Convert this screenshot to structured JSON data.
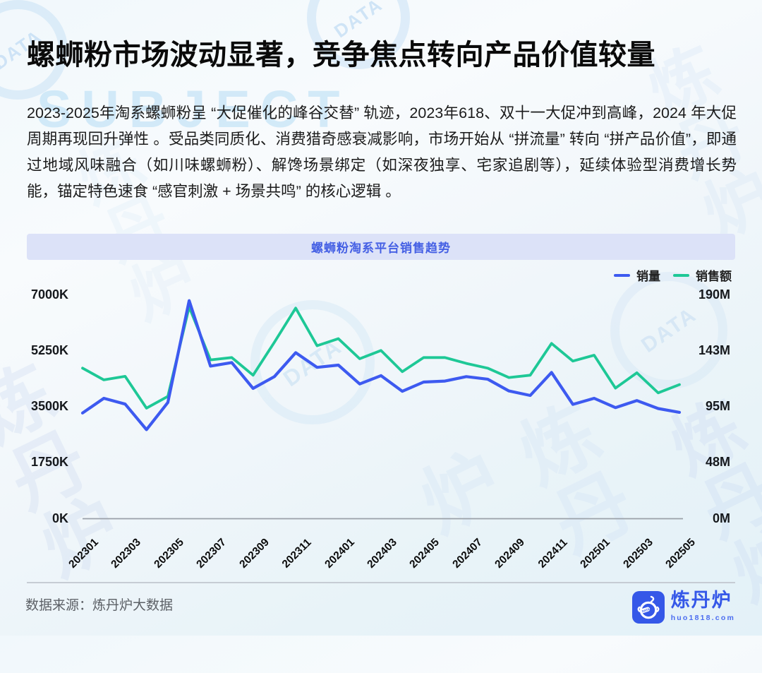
{
  "watermarks": {
    "subject_text": "SUBJECT",
    "badge_text": "DATA",
    "brand_text": "炼丹炉"
  },
  "header": {
    "title": "螺蛳粉市场波动显著，竞争焦点转向产品价值较量"
  },
  "body": {
    "paragraph": "2023-2025年淘系螺蛳粉呈 “大促催化的峰谷交替” 轨迹，2023年618、双十一大促冲到高峰，2024 年大促周期再现回升弹性 。受品类同质化、消费猎奇感衰减影响，市场开始从 “拼流量” 转向 “拼产品价值”，即通过地域风味融合（如川味螺蛳粉）、解馋场景绑定（如深夜独享、宅家追剧等），延续体验型消费增长势能，锚定特色速食 “感官刺激 + 场景共鸣” 的核心逻辑 。"
  },
  "chart_data": {
    "type": "line",
    "title": "螺蛳粉淘系平台销售趋势",
    "x": [
      "202301",
      "202302",
      "202303",
      "202304",
      "202305",
      "202306",
      "202307",
      "202308",
      "202309",
      "202310",
      "202311",
      "202312",
      "202401",
      "202402",
      "202403",
      "202404",
      "202405",
      "202406",
      "202407",
      "202408",
      "202409",
      "202410",
      "202411",
      "202412",
      "202501",
      "202502",
      "202503",
      "202504",
      "202505"
    ],
    "x_tick_labels": [
      "202301",
      "202303",
      "202305",
      "202307",
      "202309",
      "202311",
      "202401",
      "202403",
      "202405",
      "202407",
      "202409",
      "202411",
      "202501",
      "202503",
      "202505"
    ],
    "series": [
      {
        "name": "销量",
        "axis": "left",
        "unit": "K",
        "color": "#3D5AF0",
        "values": [
          3310,
          3770,
          3590,
          2790,
          3640,
          6830,
          4780,
          4890,
          4080,
          4450,
          5200,
          4740,
          4810,
          4220,
          4480,
          3990,
          4280,
          4310,
          4450,
          4370,
          4000,
          3860,
          4580,
          3580,
          3770,
          3480,
          3700,
          3450,
          3330
        ]
      },
      {
        "name": "销售额",
        "axis": "right",
        "unit": "M",
        "color": "#1EC896",
        "values": [
          128,
          118,
          121,
          94,
          104,
          180,
          135,
          137,
          122,
          150,
          179,
          147,
          153,
          136,
          143,
          125,
          137,
          137,
          132,
          128,
          120,
          122,
          149,
          134,
          139,
          111,
          124,
          107,
          114
        ]
      }
    ],
    "left_axis": {
      "ticks": [
        "0K",
        "1750K",
        "3500K",
        "5250K",
        "7000K"
      ],
      "min": 0,
      "max": 7000
    },
    "right_axis": {
      "ticks": [
        "0M",
        "48M",
        "95M",
        "143M",
        "190M"
      ],
      "min": 0,
      "max": 190
    },
    "legend_position": "top-right",
    "grid": false
  },
  "footer": {
    "source": "数据来源：炼丹炉大数据",
    "logo_name": "炼丹炉",
    "logo_sub": "huo1818.com"
  },
  "colors": {
    "accent_blue": "#3D5AF0",
    "accent_green": "#1EC896",
    "panel_bg": "#DCE2F8",
    "panel_text": "#4560E4",
    "brand_blue": "#3558E8",
    "axis_line": "#9AA0A8"
  }
}
